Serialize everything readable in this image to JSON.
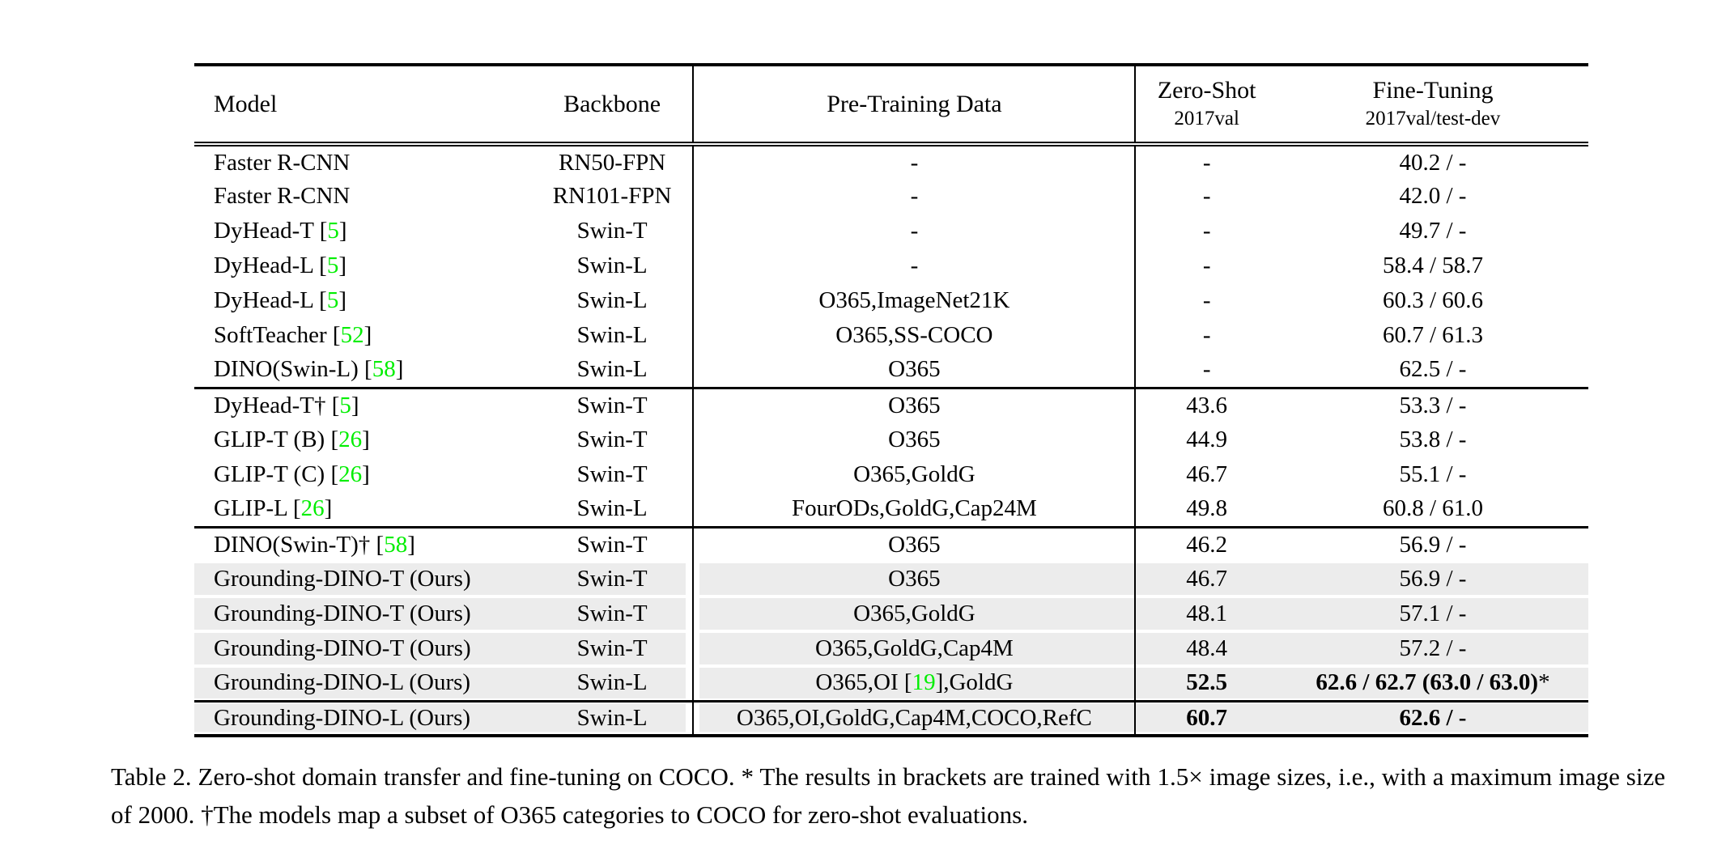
{
  "colors": {
    "citation_green": "#00ee00",
    "highlight_gray": "#ececec",
    "rule_black": "#000000",
    "page_background": "#ffffff"
  },
  "table": {
    "header": {
      "model": "Model",
      "backbone": "Backbone",
      "pretrain": "Pre-Training Data",
      "zeroshot": {
        "title": "Zero-Shot",
        "subtitle": "2017val"
      },
      "finetuning": {
        "title": "Fine-Tuning",
        "subtitle": "2017val/test-dev"
      }
    },
    "rows": [
      {
        "section": 1,
        "model": "Faster R-CNN",
        "backbone": "RN50-FPN",
        "pretrain": "-",
        "zeroshot": "-",
        "finetuning": "40.2 / -",
        "highlight": false,
        "bold": false
      },
      {
        "section": 1,
        "model": "Faster R-CNN",
        "backbone": "RN101-FPN",
        "pretrain": "-",
        "zeroshot": "-",
        "finetuning": "42.0 / -",
        "highlight": false,
        "bold": false
      },
      {
        "section": 1,
        "model": "DyHead-T [[5]]",
        "backbone": "Swin-T",
        "pretrain": "-",
        "zeroshot": "-",
        "finetuning": "49.7 / -",
        "highlight": false,
        "bold": false
      },
      {
        "section": 1,
        "model": "DyHead-L [[5]]",
        "backbone": "Swin-L",
        "pretrain": "-",
        "zeroshot": "-",
        "finetuning": "58.4 / 58.7",
        "highlight": false,
        "bold": false
      },
      {
        "section": 1,
        "model": "DyHead-L [[5]]",
        "backbone": "Swin-L",
        "pretrain": "O365,ImageNet21K",
        "zeroshot": "-",
        "finetuning": "60.3 / 60.6",
        "highlight": false,
        "bold": false
      },
      {
        "section": 1,
        "model": "SoftTeacher [[52]]",
        "backbone": "Swin-L",
        "pretrain": "O365,SS-COCO",
        "zeroshot": "-",
        "finetuning": "60.7 / 61.3",
        "highlight": false,
        "bold": false
      },
      {
        "section": 1,
        "model": "DINO(Swin-L) [[58]]",
        "backbone": "Swin-L",
        "pretrain": "O365",
        "zeroshot": "-",
        "finetuning": "62.5 / -",
        "highlight": false,
        "bold": false
      },
      {
        "section": 2,
        "model": "DyHead-T† [[5]]",
        "backbone": "Swin-T",
        "pretrain": "O365",
        "zeroshot": "43.6",
        "finetuning": "53.3 / -",
        "highlight": false,
        "bold": false
      },
      {
        "section": 2,
        "model": "GLIP-T (B) [[26]]",
        "backbone": "Swin-T",
        "pretrain": "O365",
        "zeroshot": "44.9",
        "finetuning": "53.8 / -",
        "highlight": false,
        "bold": false
      },
      {
        "section": 2,
        "model": "GLIP-T (C) [[26]]",
        "backbone": "Swin-T",
        "pretrain": "O365,GoldG",
        "zeroshot": "46.7",
        "finetuning": "55.1 / -",
        "highlight": false,
        "bold": false
      },
      {
        "section": 2,
        "model": "GLIP-L [[26]]",
        "backbone": "Swin-L",
        "pretrain": "FourODs,GoldG,Cap24M",
        "zeroshot": "49.8",
        "finetuning": "60.8 / 61.0",
        "highlight": false,
        "bold": false
      },
      {
        "section": 3,
        "model": "DINO(Swin-T)† [[58]]",
        "backbone": "Swin-T",
        "pretrain": "O365",
        "zeroshot": "46.2",
        "finetuning": "56.9 / -",
        "highlight": false,
        "bold": false
      },
      {
        "section": 3,
        "model": "Grounding-DINO-T (Ours)",
        "backbone": "Swin-T",
        "pretrain": "O365",
        "zeroshot": "46.7",
        "finetuning": "56.9 / -",
        "highlight": true,
        "bold": false
      },
      {
        "section": 3,
        "model": "Grounding-DINO-T (Ours)",
        "backbone": "Swin-T",
        "pretrain": "O365,GoldG",
        "zeroshot": "48.1",
        "finetuning": "57.1 / -",
        "highlight": true,
        "bold": false
      },
      {
        "section": 3,
        "model": "Grounding-DINO-T (Ours)",
        "backbone": "Swin-T",
        "pretrain": "O365,GoldG,Cap4M",
        "zeroshot": "48.4",
        "finetuning": "57.2 / -",
        "highlight": true,
        "bold": false
      },
      {
        "section": 3,
        "model": "Grounding-DINO-L (Ours)",
        "backbone": "Swin-L",
        "pretrain": "O365,OI [[19]],GoldG",
        "zeroshot": "52.5",
        "finetuning": "62.6 / 62.7 (63.0 / 63.0)",
        "finetuning_suffix": "*",
        "highlight": true,
        "bold": true
      },
      {
        "section": 4,
        "model": "Grounding-DINO-L (Ours)",
        "backbone": "Swin-L",
        "pretrain": "O365,OI,GoldG,Cap4M,COCO,RefC",
        "zeroshot": "60.7",
        "finetuning": "62.6 / -",
        "highlight": true,
        "bold": true
      }
    ]
  },
  "caption": {
    "text": "Table 2. Zero-shot domain transfer and fine-tuning on COCO. * The results in brackets are trained with 1.5× image sizes, i.e., with a maximum image size of 2000. †The models map a subset of O365 categories to COCO for zero-shot evaluations."
  }
}
